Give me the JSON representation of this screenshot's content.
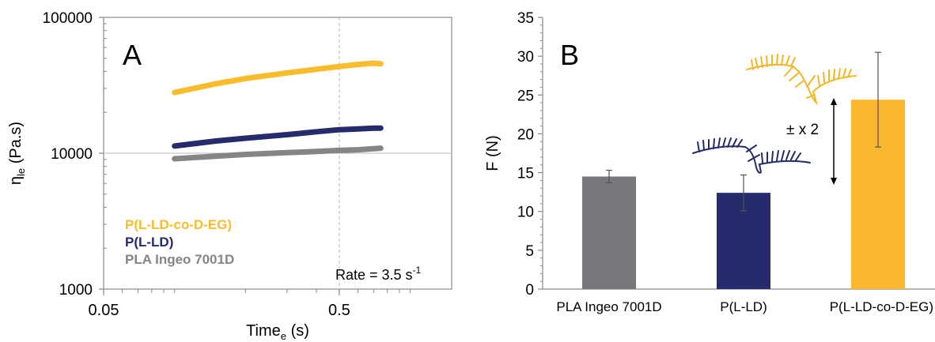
{
  "chart_data": [
    {
      "panel": "A",
      "type": "line",
      "xlabel": {
        "main": "Time",
        "sub": "e",
        "unit": " (s)"
      },
      "ylabel": {
        "main": "η",
        "sub": "le",
        "unit": " (Pa.s)"
      },
      "x_scale": "log",
      "y_scale": "log",
      "xlim": [
        0.05,
        1.5
      ],
      "ylim": [
        1000,
        100000
      ],
      "x_ticks": [
        0.05,
        0.5
      ],
      "x_tick_labels": [
        "0.05",
        "0.5"
      ],
      "y_ticks": [
        1000,
        10000,
        100000
      ],
      "y_tick_labels": [
        "1000",
        "10000",
        "100000"
      ],
      "reference_lines": {
        "x": 0.5,
        "y": 10000
      },
      "annotation": {
        "text": "Rate = 3.5 s",
        "sup": "-1"
      },
      "legend_position": "bottom-left",
      "series": [
        {
          "name": "P(L-LD-co-D-EG)",
          "color": "#F9BC2C",
          "x": [
            0.1,
            0.15,
            0.2,
            0.3,
            0.4,
            0.5,
            0.6,
            0.7,
            0.75
          ],
          "y": [
            28000,
            32500,
            35500,
            39000,
            41500,
            43500,
            45000,
            46000,
            45500
          ]
        },
        {
          "name": "P(L-LD)",
          "color": "#252B6B",
          "x": [
            0.1,
            0.15,
            0.2,
            0.3,
            0.4,
            0.5,
            0.6,
            0.7,
            0.75
          ],
          "y": [
            11300,
            12300,
            12900,
            13700,
            14400,
            14900,
            15100,
            15300,
            15300
          ]
        },
        {
          "name": "PLA Ingeo 7001D",
          "color": "#858585",
          "x": [
            0.1,
            0.15,
            0.2,
            0.3,
            0.4,
            0.5,
            0.6,
            0.7,
            0.75
          ],
          "y": [
            9100,
            9500,
            9800,
            10100,
            10300,
            10500,
            10600,
            10800,
            10900
          ]
        }
      ]
    },
    {
      "panel": "B",
      "type": "bar",
      "ylabel": "F (N)",
      "ylim": [
        0,
        35
      ],
      "y_ticks": [
        0,
        5,
        10,
        15,
        20,
        25,
        30,
        35
      ],
      "categories": [
        "PLA Ingeo 7001D",
        "P(L-LD)",
        "P(L-LD-co-D-EG)"
      ],
      "values": [
        14.5,
        12.4,
        24.4
      ],
      "errors": [
        0.8,
        2.3,
        6.1
      ],
      "colors": [
        "#77787B",
        "#252B6B",
        "#FCB730"
      ],
      "annotation": "± x 2"
    }
  ]
}
